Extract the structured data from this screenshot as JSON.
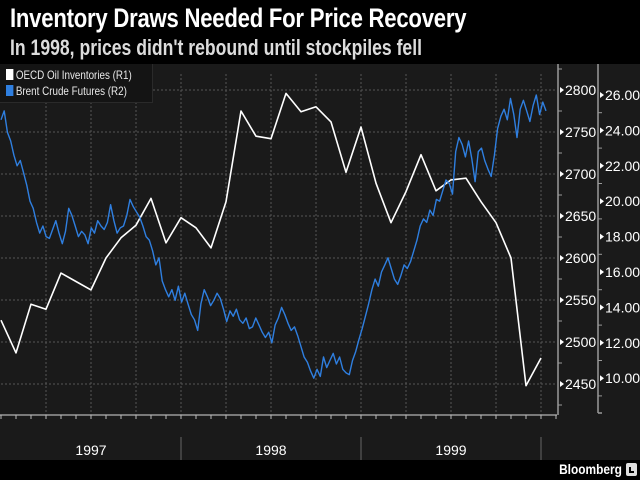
{
  "header": {
    "title": "Inventory Draws Needed For Price Recovery",
    "subtitle": "In 1998, prices didn't rebound until stockpiles fell"
  },
  "legend": [
    {
      "label": "OECD Oil Inventories (R1)",
      "color": "#ffffff"
    },
    {
      "label": "Brent Crude Futures (R2)",
      "color": "#2f7fe0"
    }
  ],
  "footer": {
    "brand": "Bloomberg"
  },
  "chart_data": {
    "type": "line",
    "title": "Inventory Draws Needed For Price Recovery",
    "subtitle": "In 1998, prices didn't rebound until stockpiles fell",
    "x_range": [
      "1997-01",
      "2000-01"
    ],
    "x_tick_labels": [
      "1997",
      "1998",
      "1999"
    ],
    "grid": true,
    "legend_position": "top-left",
    "axes": {
      "R1": {
        "ticks": [
          "2450",
          "2500",
          "2550",
          "2600",
          "2650",
          "2700",
          "2750",
          "2800"
        ],
        "range": [
          2410,
          2815
        ]
      },
      "R2": {
        "ticks": [
          "10.00",
          "12.00",
          "14.00",
          "16.00",
          "18.00",
          "20.00",
          "22.00",
          "24.00",
          "26.00"
        ],
        "range": [
          8.2,
          26.3
        ]
      }
    },
    "series": [
      {
        "name": "OECD Oil Inventories (R1)",
        "axis": "R1",
        "color": "#ffffff",
        "frequency": "monthly, starting Jan 1997",
        "values": [
          2526,
          2487,
          2545,
          2539,
          2582,
          2572,
          2562,
          2600,
          2624,
          2639,
          2671,
          2618,
          2648,
          2636,
          2612,
          2667,
          2775,
          2745,
          2742,
          2796,
          2774,
          2780,
          2762,
          2702,
          2756,
          2689,
          2642,
          2679,
          2723,
          2680,
          2693,
          2695,
          2667,
          2642,
          2600,
          2448,
          2481
        ]
      },
      {
        "name": "Brent Crude Futures (R2)",
        "axis": "R2",
        "color": "#2f7fe0",
        "frequency": "approx. weekly, starting Jan 1997",
        "values": [
          24.6,
          25.1,
          23.9,
          23.4,
          22.6,
          22.0,
          22.3,
          21.6,
          20.9,
          20.0,
          19.6,
          18.8,
          18.2,
          18.6,
          18.0,
          17.9,
          18.4,
          18.9,
          18.2,
          17.6,
          18.3,
          19.6,
          19.2,
          18.6,
          18.0,
          18.3,
          18.1,
          17.6,
          18.5,
          18.2,
          18.9,
          18.6,
          18.4,
          18.8,
          19.8,
          18.9,
          18.2,
          18.5,
          18.6,
          19.2,
          20.1,
          19.7,
          19.4,
          19.1,
          18.6,
          18.0,
          17.8,
          17.2,
          16.4,
          16.8,
          15.5,
          15.0,
          14.6,
          15.0,
          14.4,
          15.2,
          14.3,
          14.8,
          14.2,
          13.6,
          13.3,
          12.7,
          14.2,
          15.0,
          14.6,
          14.1,
          14.4,
          14.8,
          14.5,
          13.9,
          13.2,
          13.8,
          13.5,
          13.9,
          13.3,
          13.1,
          13.4,
          12.8,
          12.9,
          13.4,
          13.0,
          12.6,
          12.3,
          12.6,
          12.0,
          13.0,
          13.4,
          14.0,
          13.6,
          13.1,
          12.7,
          12.9,
          12.4,
          11.8,
          11.2,
          10.9,
          10.4,
          10.0,
          10.5,
          10.1,
          11.2,
          10.6,
          11.0,
          11.4,
          10.8,
          11.2,
          10.5,
          10.3,
          10.2,
          11.0,
          11.5,
          12.2,
          12.8,
          13.5,
          14.2,
          15.0,
          15.6,
          15.2,
          16.0,
          16.4,
          16.8,
          16.2,
          15.6,
          15.3,
          15.8,
          16.4,
          16.2,
          16.6,
          17.2,
          17.8,
          18.6,
          19.0,
          18.8,
          19.5,
          19.2,
          20.1,
          20.0,
          20.6,
          21.2,
          21.0,
          20.4,
          22.8,
          23.6,
          23.2,
          22.5,
          23.4,
          22.4,
          21.1,
          22.8,
          23.0,
          22.3,
          21.8,
          21.4,
          22.6,
          24.1,
          24.8,
          25.2,
          24.6,
          25.8,
          24.9,
          23.6,
          25.2,
          25.7,
          25.1,
          24.5,
          25.4,
          26.0,
          24.9,
          25.6,
          25.1
        ]
      }
    ]
  }
}
